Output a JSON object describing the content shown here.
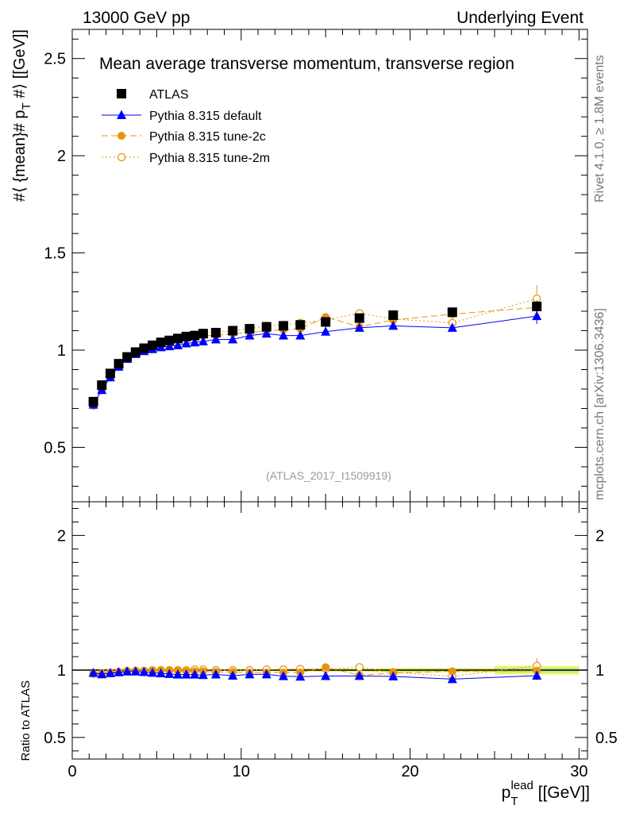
{
  "header": {
    "left": "13000 GeV pp",
    "right": "Underlying Event"
  },
  "side": {
    "rivet": "Rivet 4.1.0, ≥ 1.8M events",
    "mcplots": "mcplots.cern.ch [arXiv:1306.3436]"
  },
  "chart_data": {
    "type": "scatter",
    "title": "Mean average transverse momentum, transverse region",
    "analysis_label": "(ATLAS_2017_I1509919)",
    "xlabel": "p_T^lead [[GeV]]",
    "ylabel": "#⟨ {mean}# p_T #⟩ [[GeV]]",
    "ratio_ylabel": "Ratio to ATLAS",
    "xlim": [
      0,
      30.5
    ],
    "ylim": [
      0.22,
      2.65
    ],
    "ratio_ylim": [
      0.34,
      2.25
    ],
    "x_ticks": [
      "0",
      "10",
      "20",
      "30"
    ],
    "y_ticks": [
      "0.5",
      "1",
      "1.5",
      "2",
      "2.5"
    ],
    "ratio_y_ticks": [
      "0.5",
      "1",
      "2"
    ],
    "x": [
      1.25,
      1.75,
      2.25,
      2.75,
      3.25,
      3.75,
      4.25,
      4.75,
      5.25,
      5.75,
      6.25,
      6.75,
      7.25,
      7.75,
      8.5,
      9.5,
      10.5,
      11.5,
      12.5,
      13.5,
      15,
      17,
      19,
      22.5,
      27.5
    ],
    "series": [
      {
        "name": "ATLAS",
        "color": "#000000",
        "marker": "square",
        "values": [
          0.735,
          0.82,
          0.88,
          0.93,
          0.965,
          0.99,
          1.01,
          1.025,
          1.04,
          1.05,
          1.06,
          1.07,
          1.075,
          1.085,
          1.09,
          1.1,
          1.11,
          1.12,
          1.125,
          1.13,
          1.145,
          1.165,
          1.18,
          1.195,
          1.225
        ],
        "errors": [
          0.005,
          0.005,
          0.005,
          0.005,
          0.005,
          0.005,
          0.005,
          0.005,
          0.005,
          0.005,
          0.005,
          0.005,
          0.005,
          0.006,
          0.006,
          0.006,
          0.007,
          0.007,
          0.008,
          0.008,
          0.01,
          0.012,
          0.015,
          0.015,
          0.03
        ]
      },
      {
        "name": "Pythia 8.315 default",
        "color": "#0000ff",
        "marker": "triangle",
        "values": [
          0.72,
          0.795,
          0.86,
          0.915,
          0.955,
          0.98,
          0.995,
          1.005,
          1.015,
          1.02,
          1.025,
          1.035,
          1.04,
          1.045,
          1.055,
          1.055,
          1.075,
          1.085,
          1.075,
          1.075,
          1.095,
          1.115,
          1.125,
          1.115,
          1.175
        ],
        "errors": [
          0.005,
          0.005,
          0.005,
          0.005,
          0.005,
          0.005,
          0.005,
          0.005,
          0.006,
          0.006,
          0.006,
          0.007,
          0.007,
          0.008,
          0.008,
          0.009,
          0.01,
          0.011,
          0.012,
          0.013,
          0.015,
          0.015,
          0.02,
          0.02,
          0.04
        ]
      },
      {
        "name": "Pythia 8.315 tune-2c",
        "color": "#e8950c",
        "marker": "circle",
        "dash": "8,4",
        "values": [
          0.715,
          0.795,
          0.865,
          0.92,
          0.96,
          0.985,
          1.005,
          1.02,
          1.035,
          1.045,
          1.055,
          1.06,
          1.065,
          1.075,
          1.075,
          1.085,
          1.09,
          1.1,
          1.105,
          1.11,
          1.17,
          1.12,
          1.155,
          1.185,
          1.22
        ],
        "errors": [
          0.005,
          0.005,
          0.005,
          0.005,
          0.005,
          0.005,
          0.005,
          0.005,
          0.006,
          0.006,
          0.006,
          0.007,
          0.007,
          0.008,
          0.008,
          0.009,
          0.01,
          0.011,
          0.012,
          0.013,
          0.015,
          0.015,
          0.02,
          0.02,
          0.03
        ]
      },
      {
        "name": "Pythia 8.315 tune-2m",
        "color": "#e8950c",
        "marker": "open-circle",
        "dash": "2,3",
        "values": [
          0.715,
          0.8,
          0.86,
          0.915,
          0.955,
          0.985,
          1.005,
          1.025,
          1.04,
          1.05,
          1.06,
          1.07,
          1.08,
          1.09,
          1.09,
          1.1,
          1.11,
          1.125,
          1.13,
          1.14,
          1.155,
          1.19,
          1.16,
          1.14,
          1.265
        ],
        "errors": [
          0.005,
          0.005,
          0.005,
          0.005,
          0.005,
          0.005,
          0.005,
          0.005,
          0.006,
          0.006,
          0.006,
          0.007,
          0.007,
          0.008,
          0.008,
          0.009,
          0.01,
          0.011,
          0.012,
          0.013,
          0.015,
          0.015,
          0.02,
          0.02,
          0.07
        ]
      }
    ],
    "ratio_band": {
      "color": "#f2f566",
      "inner_color": "#b9ec8a"
    }
  }
}
